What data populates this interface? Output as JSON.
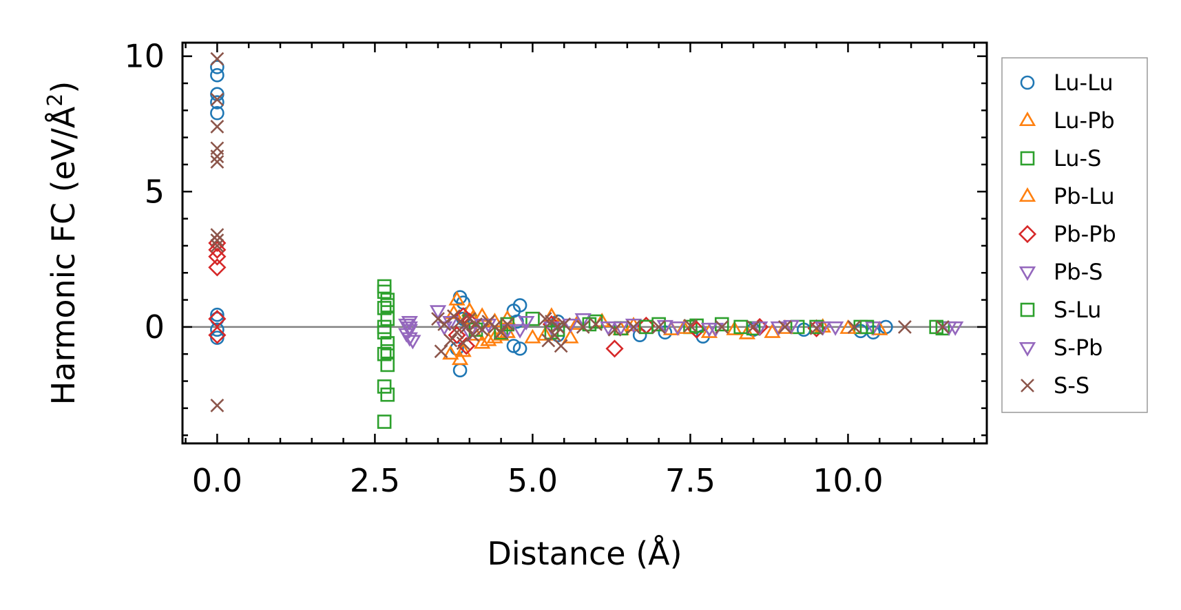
{
  "chart_data": {
    "type": "scatter",
    "title": "",
    "xlabel": "Distance (Å)",
    "ylabel_main": "Harmonic FC (eV/Å",
    "ylabel_sup": "2",
    "ylabel_end": ")",
    "xlim": [
      -0.55,
      12.2
    ],
    "ylim": [
      -4.3,
      10.5
    ],
    "xticks": [
      {
        "value": 0.0,
        "label": "0.0"
      },
      {
        "value": 2.5,
        "label": "2.5"
      },
      {
        "value": 5.0,
        "label": "5.0"
      },
      {
        "value": 7.5,
        "label": "7.5"
      },
      {
        "value": 10.0,
        "label": "10.0"
      }
    ],
    "yticks": [
      {
        "value": 0,
        "label": "0"
      },
      {
        "value": 5,
        "label": "5"
      },
      {
        "value": 10,
        "label": "10"
      }
    ],
    "zero_line": 0,
    "legend_position": "right-outside",
    "series": [
      {
        "name": "Lu-Lu",
        "marker": "circle",
        "color": "#1f77b4",
        "points": [
          [
            0,
            9.6
          ],
          [
            0,
            9.3
          ],
          [
            0,
            8.6
          ],
          [
            0,
            8.3
          ],
          [
            0,
            7.9
          ],
          [
            0,
            0.45
          ],
          [
            0,
            0.3
          ],
          [
            0,
            -0.1
          ],
          [
            0,
            -0.4
          ],
          [
            3.85,
            1.1
          ],
          [
            3.9,
            0.9
          ],
          [
            3.85,
            -1.6
          ],
          [
            3.8,
            -0.8
          ],
          [
            3.9,
            0.3
          ],
          [
            4.7,
            0.6
          ],
          [
            4.7,
            -0.7
          ],
          [
            4.8,
            0.8
          ],
          [
            4.8,
            -0.8
          ],
          [
            4.75,
            0.2
          ],
          [
            5.4,
            0.2
          ],
          [
            5.4,
            -0.3
          ],
          [
            6.7,
            -0.3
          ],
          [
            7.1,
            -0.2
          ],
          [
            7.7,
            -0.35
          ],
          [
            8.5,
            -0.1
          ],
          [
            9.3,
            -0.1
          ],
          [
            10.2,
            -0.15
          ],
          [
            10.4,
            -0.2
          ],
          [
            10.6,
            0.0
          ]
        ]
      },
      {
        "name": "Lu-Pb",
        "marker": "triangle-up",
        "color": "#ff7f0e",
        "points": [
          [
            3.7,
            -1.0
          ],
          [
            3.75,
            0.5
          ],
          [
            3.8,
            1.0
          ],
          [
            3.85,
            -1.2
          ],
          [
            4.0,
            0.6
          ],
          [
            4.1,
            -0.3
          ],
          [
            4.2,
            0.4
          ],
          [
            4.3,
            -0.5
          ],
          [
            4.4,
            -0.4
          ],
          [
            4.5,
            -0.3
          ],
          [
            4.6,
            0.3
          ],
          [
            5.0,
            -0.4
          ],
          [
            5.3,
            0.4
          ],
          [
            5.6,
            -0.4
          ],
          [
            6.1,
            0.2
          ],
          [
            6.4,
            -0.1
          ],
          [
            7.2,
            -0.1
          ],
          [
            7.8,
            -0.2
          ],
          [
            8.4,
            -0.25
          ],
          [
            8.8,
            -0.2
          ],
          [
            9.6,
            0.0
          ],
          [
            10.5,
            -0.1
          ]
        ]
      },
      {
        "name": "Lu-S",
        "marker": "square",
        "color": "#2ca02c",
        "points": [
          [
            2.65,
            1.5
          ],
          [
            2.65,
            1.3
          ],
          [
            2.7,
            1.0
          ],
          [
            2.65,
            0.7
          ],
          [
            2.7,
            0.3
          ],
          [
            2.65,
            -0.2
          ],
          [
            2.7,
            -0.6
          ],
          [
            2.65,
            -1.0
          ],
          [
            2.7,
            -1.4
          ],
          [
            2.65,
            -2.2
          ],
          [
            2.7,
            -2.5
          ],
          [
            2.65,
            -3.5
          ],
          [
            4.0,
            0.2
          ],
          [
            4.5,
            -0.2
          ],
          [
            5.0,
            0.3
          ],
          [
            5.4,
            -0.1
          ],
          [
            6.0,
            0.2
          ],
          [
            6.4,
            -0.05
          ],
          [
            7.0,
            0.1
          ],
          [
            7.5,
            0.0
          ],
          [
            8.0,
            0.1
          ],
          [
            8.5,
            -0.05
          ],
          [
            9.2,
            0.0
          ],
          [
            10.2,
            0.0
          ],
          [
            11.5,
            -0.05
          ]
        ]
      },
      {
        "name": "Pb-Lu",
        "marker": "triangle-up",
        "color": "#ff7f0e",
        "points": [
          [
            3.9,
            -0.9
          ],
          [
            4.05,
            0.3
          ],
          [
            4.2,
            -0.6
          ],
          [
            4.4,
            0.2
          ],
          [
            4.6,
            -0.2
          ],
          [
            5.2,
            -0.3
          ],
          [
            5.7,
            0.1
          ],
          [
            6.6,
            0.05
          ],
          [
            7.4,
            -0.05
          ],
          [
            8.2,
            -0.1
          ],
          [
            9.0,
            -0.05
          ],
          [
            10.0,
            -0.05
          ]
        ]
      },
      {
        "name": "Pb-Pb",
        "marker": "diamond",
        "color": "#d62728",
        "points": [
          [
            0,
            3.1
          ],
          [
            0,
            2.85
          ],
          [
            0,
            2.6
          ],
          [
            0,
            2.2
          ],
          [
            0,
            0.3
          ],
          [
            0,
            -0.3
          ],
          [
            3.8,
            -0.3
          ],
          [
            3.9,
            0.4
          ],
          [
            3.95,
            -0.7
          ],
          [
            4.0,
            0.2
          ],
          [
            5.3,
            0.1
          ],
          [
            6.3,
            -0.8
          ],
          [
            6.8,
            0.05
          ],
          [
            7.6,
            -0.1
          ],
          [
            8.6,
            0.0
          ],
          [
            9.5,
            -0.05
          ]
        ]
      },
      {
        "name": "Pb-S",
        "marker": "triangle-down",
        "color": "#9467bd",
        "points": [
          [
            3.05,
            0.2
          ],
          [
            3.05,
            -0.1
          ],
          [
            3.05,
            -0.4
          ],
          [
            3.05,
            0.0
          ],
          [
            3.5,
            0.6
          ],
          [
            3.7,
            0.2
          ],
          [
            4.0,
            -0.2
          ],
          [
            4.3,
            0.1
          ],
          [
            4.6,
            -0.1
          ],
          [
            4.9,
            0.2
          ],
          [
            5.3,
            0.0
          ],
          [
            5.8,
            0.3
          ],
          [
            6.2,
            0.0
          ],
          [
            6.6,
            0.1
          ],
          [
            7.3,
            0.0
          ],
          [
            7.9,
            -0.05
          ],
          [
            8.6,
            0.0
          ],
          [
            9.1,
            0.05
          ],
          [
            9.8,
            0.0
          ],
          [
            10.4,
            0.0
          ],
          [
            11.6,
            0.0
          ]
        ]
      },
      {
        "name": "S-Lu",
        "marker": "square",
        "color": "#2ca02c",
        "points": [
          [
            2.7,
            0.8
          ],
          [
            2.65,
            0.0
          ],
          [
            2.7,
            -0.9
          ],
          [
            4.1,
            -0.1
          ],
          [
            4.6,
            0.1
          ],
          [
            5.3,
            -0.2
          ],
          [
            5.9,
            0.1
          ],
          [
            6.8,
            0.0
          ],
          [
            7.6,
            0.05
          ],
          [
            8.3,
            0.0
          ],
          [
            9.5,
            0.0
          ],
          [
            10.3,
            0.0
          ],
          [
            11.4,
            0.0
          ]
        ]
      },
      {
        "name": "S-Pb",
        "marker": "triangle-down",
        "color": "#9467bd",
        "points": [
          [
            3.0,
            0.1
          ],
          [
            3.0,
            -0.25
          ],
          [
            3.1,
            -0.5
          ],
          [
            3.6,
            0.0
          ],
          [
            4.2,
            0.1
          ],
          [
            4.8,
            -0.1
          ],
          [
            5.6,
            0.1
          ],
          [
            6.4,
            0.0
          ],
          [
            7.1,
            0.05
          ],
          [
            7.8,
            -0.05
          ],
          [
            8.9,
            0.0
          ],
          [
            9.6,
            0.0
          ],
          [
            11.7,
            0.0
          ]
        ]
      },
      {
        "name": "S-S",
        "marker": "x",
        "color": "#8c564b",
        "points": [
          [
            0,
            9.9
          ],
          [
            0,
            8.4
          ],
          [
            0,
            7.4
          ],
          [
            0,
            6.6
          ],
          [
            0,
            6.3
          ],
          [
            0,
            6.1
          ],
          [
            0,
            3.4
          ],
          [
            0,
            3.2
          ],
          [
            0,
            3.0
          ],
          [
            0,
            -2.9
          ],
          [
            3.5,
            0.3
          ],
          [
            3.55,
            -0.9
          ],
          [
            3.6,
            0.1
          ],
          [
            3.7,
            -0.5
          ],
          [
            3.75,
            0.4
          ],
          [
            3.8,
            -0.2
          ],
          [
            3.85,
            0.2
          ],
          [
            3.9,
            -0.6
          ],
          [
            3.95,
            0.0
          ],
          [
            4.0,
            0.3
          ],
          [
            4.05,
            -0.3
          ],
          [
            4.1,
            0.1
          ],
          [
            4.2,
            -0.1
          ],
          [
            4.3,
            0.2
          ],
          [
            4.4,
            0.0
          ],
          [
            4.5,
            -0.2
          ],
          [
            4.6,
            0.1
          ],
          [
            5.2,
            0.3
          ],
          [
            5.25,
            -0.5
          ],
          [
            5.3,
            0.2
          ],
          [
            5.35,
            -0.3
          ],
          [
            5.4,
            0.0
          ],
          [
            5.45,
            -0.7
          ],
          [
            5.5,
            0.1
          ],
          [
            5.8,
            0.0
          ],
          [
            6.0,
            0.1
          ],
          [
            6.3,
            -0.1
          ],
          [
            6.6,
            0.0
          ],
          [
            7.0,
            0.0
          ],
          [
            7.5,
            0.05
          ],
          [
            8.0,
            0.0
          ],
          [
            8.5,
            0.0
          ],
          [
            9.0,
            0.0
          ],
          [
            9.5,
            -0.05
          ],
          [
            10.1,
            0.0
          ],
          [
            10.9,
            0.0
          ],
          [
            11.5,
            0.0
          ]
        ]
      }
    ]
  }
}
